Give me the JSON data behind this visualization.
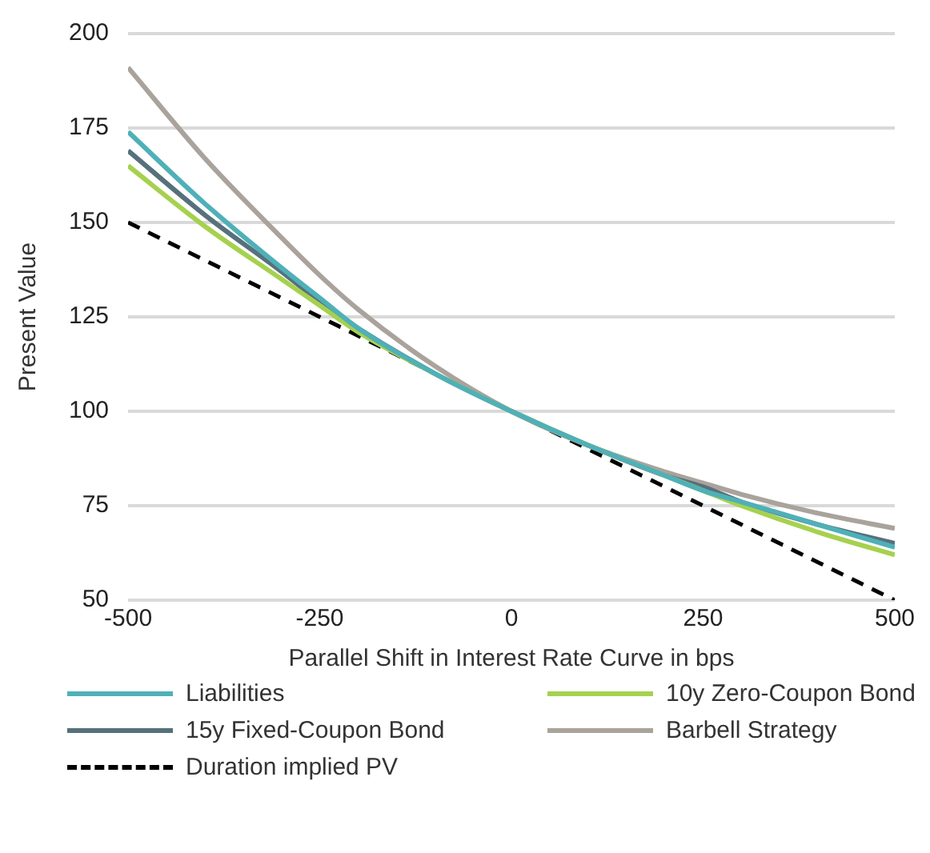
{
  "chart_data": {
    "type": "line",
    "xlabel": "Parallel Shift in Interest Rate Curve in bps",
    "ylabel": "Present Value",
    "x": [
      -500,
      -400,
      -300,
      -250,
      -200,
      -100,
      0,
      100,
      200,
      250,
      300,
      400,
      500
    ],
    "xlim": [
      -500,
      500
    ],
    "xticks": [
      -500,
      -250,
      0,
      250,
      500
    ],
    "ylim": [
      50,
      200
    ],
    "yticks": [
      50,
      75,
      100,
      125,
      150,
      175,
      200
    ],
    "grid": "y",
    "legend": "bottom",
    "marker": "none",
    "series": [
      {
        "name": "Liabilities",
        "color": "#4fb0b8",
        "values": [
          174,
          155,
          138,
          130,
          122,
          110,
          100,
          91,
          83,
          79,
          76,
          70,
          64
        ]
      },
      {
        "name": "10y Zero-Coupon Bond",
        "color": "#a6d14f",
        "values": [
          165,
          149,
          135,
          128,
          121,
          110,
          100,
          91,
          83,
          79,
          75,
          68,
          62
        ]
      },
      {
        "name": "15y Fixed-Coupon Bond",
        "color": "#56707c",
        "values": [
          169,
          152,
          137,
          129,
          122,
          110,
          100,
          91,
          83,
          80,
          76,
          70,
          65
        ]
      },
      {
        "name": "Barbell Strategy",
        "color": "#a9a39c",
        "values": [
          191,
          167,
          146,
          136,
          127,
          112,
          100,
          91,
          84,
          81,
          78,
          73,
          69
        ]
      },
      {
        "name": "Duration implied PV",
        "color": "#000000",
        "line_style": "dashed",
        "x": [
          -500,
          500
        ],
        "values": [
          150,
          50
        ]
      }
    ]
  }
}
